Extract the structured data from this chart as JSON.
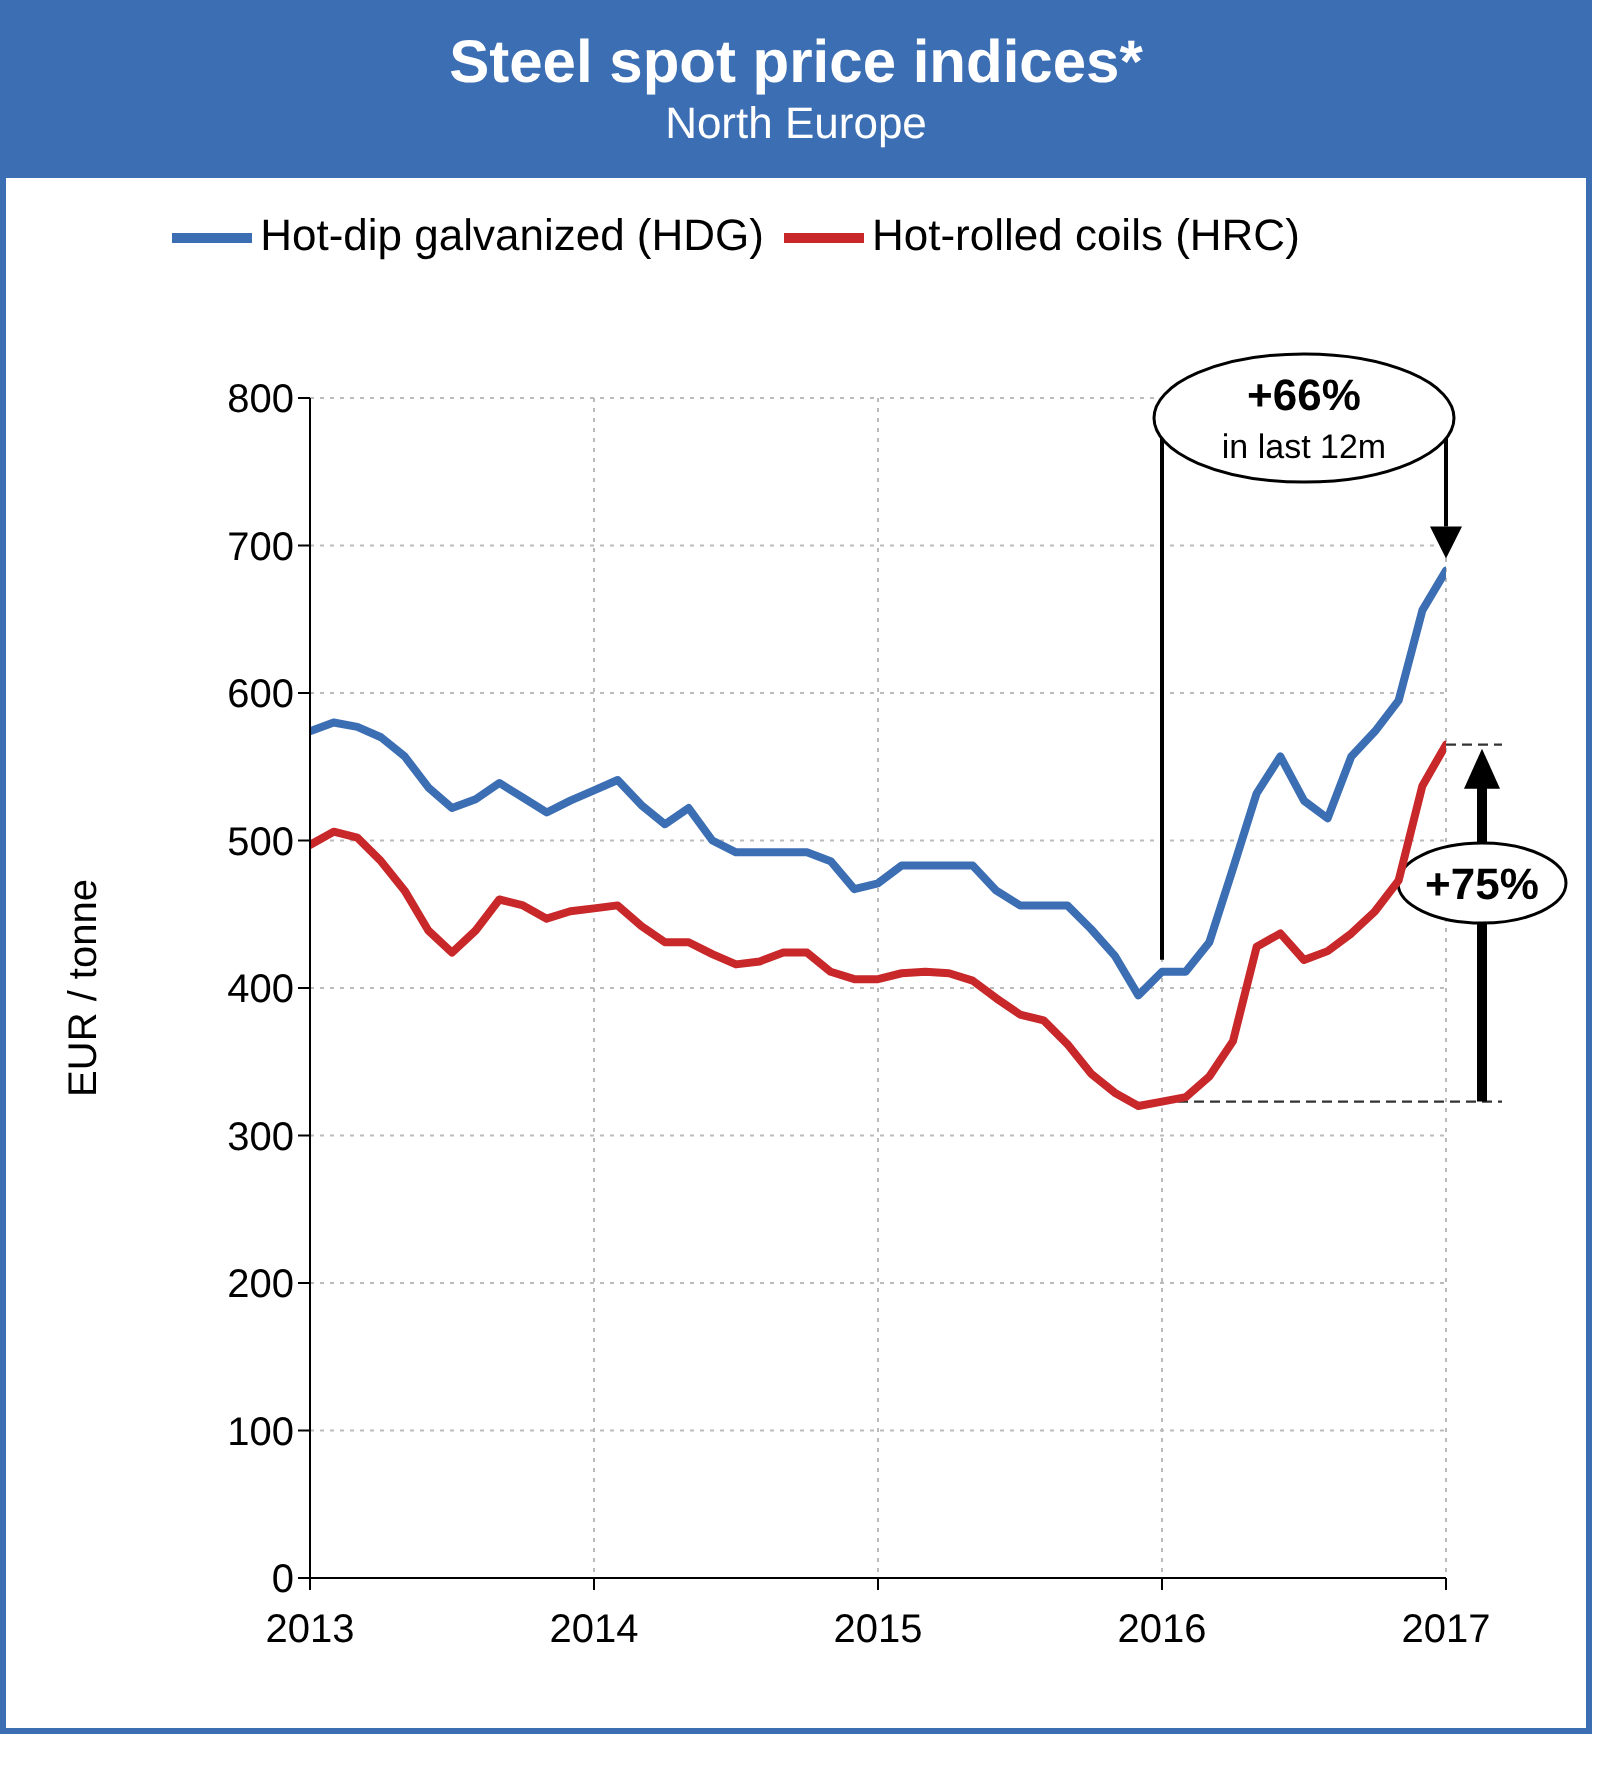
{
  "chart_data": {
    "type": "line",
    "title": "Steel spot price indices*",
    "subtitle": "North Europe",
    "ylabel": "EUR / tonne",
    "x": [
      "2013-01",
      "2013-02",
      "2013-03",
      "2013-04",
      "2013-05",
      "2013-06",
      "2013-07",
      "2013-08",
      "2013-09",
      "2013-10",
      "2013-11",
      "2013-12",
      "2014-01",
      "2014-02",
      "2014-03",
      "2014-04",
      "2014-05",
      "2014-06",
      "2014-07",
      "2014-08",
      "2014-09",
      "2014-10",
      "2014-11",
      "2014-12",
      "2015-01",
      "2015-02",
      "2015-03",
      "2015-04",
      "2015-05",
      "2015-06",
      "2015-07",
      "2015-08",
      "2015-09",
      "2015-10",
      "2015-11",
      "2015-12",
      "2016-01",
      "2016-02",
      "2016-03",
      "2016-04",
      "2016-05",
      "2016-06",
      "2016-07",
      "2016-08",
      "2016-09",
      "2016-10",
      "2016-11",
      "2016-12",
      "2017-01"
    ],
    "series": [
      {
        "name": "Hot-dip galvanized (HDG)",
        "color": "#3c6eb4",
        "values": [
          574,
          580,
          577,
          570,
          557,
          536,
          522,
          528,
          539,
          529,
          519,
          527,
          534,
          541,
          524,
          511,
          522,
          500,
          492,
          492,
          492,
          492,
          486,
          467,
          471,
          483,
          483,
          483,
          483,
          466,
          456,
          456,
          456,
          440,
          422,
          395,
          411,
          411,
          431,
          481,
          532,
          557,
          527,
          515,
          557,
          574,
          595,
          656,
          683
        ]
      },
      {
        "name": "Hot-rolled coils (HRC)",
        "color": "#c8282a",
        "values": [
          497,
          506,
          502,
          486,
          466,
          439,
          424,
          439,
          460,
          456,
          447,
          452,
          454,
          456,
          442,
          431,
          431,
          423,
          416,
          418,
          424,
          424,
          411,
          406,
          406,
          410,
          411,
          410,
          405,
          393,
          382,
          378,
          362,
          342,
          329,
          320,
          323,
          326,
          340,
          364,
          428,
          437,
          419,
          425,
          437,
          452,
          473,
          537,
          565
        ]
      }
    ],
    "xlim": [
      "2013-01",
      "2017-01"
    ],
    "xticks": [
      {
        "value": "2013-01",
        "label": "2013"
      },
      {
        "value": "2014-01",
        "label": "2014"
      },
      {
        "value": "2015-01",
        "label": "2015"
      },
      {
        "value": "2016-01",
        "label": "2016"
      },
      {
        "value": "2017-01",
        "label": "2017"
      }
    ],
    "ylim": [
      0,
      800
    ],
    "yticks": [
      0,
      100,
      200,
      300,
      400,
      500,
      600,
      700,
      800
    ],
    "grid": true,
    "legend": "top",
    "marker": "none",
    "line_style": "solid",
    "annotations": [
      "+66%",
      "in last 12m",
      "+75%"
    ]
  }
}
